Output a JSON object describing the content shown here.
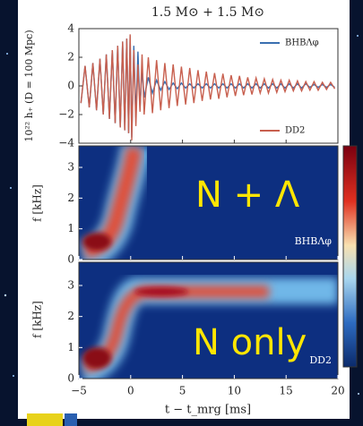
{
  "chart_data": [
    {
      "type": "line",
      "title": "1.5 M⊙ + 1.5 M⊙",
      "y_label": "10²² h₊ (D = 100 Mpc)",
      "xlim": [
        -5,
        20
      ],
      "x": [
        -4.8,
        -4.4,
        -4.0,
        -3.65,
        -3.3,
        -2.97,
        -2.65,
        -2.35,
        -2.05,
        -1.77,
        -1.5,
        -1.25,
        -1.0,
        -0.78,
        -0.57,
        -0.38,
        -0.2,
        -0.05,
        0.1,
        0.3,
        0.5,
        0.7,
        0.9,
        1.1,
        1.3,
        1.7,
        2.1,
        2.5,
        2.9,
        3.3,
        3.7,
        4.1,
        4.5,
        4.9,
        5.3,
        5.7,
        6.1,
        6.5,
        6.9,
        7.3,
        7.7,
        8.1,
        8.5,
        8.9,
        9.3,
        9.7,
        10.1,
        10.5,
        10.9,
        11.3,
        11.7,
        12.1,
        12.5,
        12.9,
        13.3,
        13.7,
        14.1,
        14.5,
        14.9,
        15.3,
        15.7,
        16.1,
        16.5,
        16.9,
        17.3,
        17.7,
        18.1,
        18.5,
        18.9,
        19.3,
        19.7
      ],
      "series": [
        {
          "name": "BHBΛφ",
          "color": "#3a6fb0",
          "values": [
            -1.2,
            1.4,
            -1.5,
            1.6,
            -1.7,
            1.9,
            -2.0,
            2.2,
            -2.3,
            2.5,
            -2.6,
            2.8,
            -2.9,
            3.1,
            -3.1,
            3.3,
            -3.3,
            3.5,
            -3.6,
            2.8,
            -2.2,
            2.4,
            -1.6,
            1.2,
            -0.8,
            0.6,
            -0.5,
            0.4,
            -0.3,
            0.3,
            -0.25,
            0.2,
            -0.2,
            0.2,
            -0.15,
            0.15,
            -0.15,
            0.15,
            -0.15,
            0.15,
            -0.15,
            0.15,
            -0.15,
            0.15,
            -0.15,
            0.15,
            -0.15,
            0.15,
            -0.15,
            0.15,
            -0.15,
            0.15,
            -0.15,
            0.15,
            -0.15,
            0.15,
            -0.15,
            0.15,
            -0.15,
            0.15,
            -0.15,
            0.15,
            -0.15,
            0.15,
            -0.1,
            0.1,
            -0.1,
            0.1,
            -0.1,
            0.1,
            -0.1
          ]
        },
        {
          "name": "DD2",
          "color": "#c8604f",
          "values": [
            -1.2,
            1.4,
            -1.5,
            1.6,
            -1.7,
            1.9,
            -2.0,
            2.2,
            -2.3,
            2.5,
            -2.6,
            2.8,
            -2.9,
            3.1,
            -3.1,
            3.3,
            -3.3,
            3.6,
            -3.8,
            2.5,
            -2.8,
            1.5,
            -1.8,
            2.2,
            -2.0,
            2.0,
            -1.9,
            1.8,
            -1.7,
            1.6,
            -1.55,
            1.5,
            -1.4,
            1.35,
            -1.3,
            1.25,
            -1.2,
            1.1,
            -1.05,
            1.0,
            -0.95,
            0.9,
            -0.9,
            0.85,
            -0.8,
            0.75,
            -0.7,
            0.7,
            -0.65,
            0.6,
            -0.6,
            0.55,
            -0.5,
            0.5,
            -0.5,
            0.45,
            -0.45,
            0.4,
            -0.4,
            0.4,
            -0.35,
            0.35,
            -0.35,
            0.3,
            -0.3,
            0.3,
            -0.3,
            0.25,
            -0.25,
            0.25,
            -0.2
          ]
        }
      ],
      "ylim": [
        -4,
        4
      ],
      "yticks": [
        {
          "value": -4,
          "label": "−4"
        },
        {
          "value": -2,
          "label": "−2"
        },
        0,
        2,
        4
      ]
    },
    {
      "type": "heatmap",
      "y_label": "f [kHz]",
      "panel_label": "BHBΛφ",
      "annotation": "N + Λ",
      "xlim": [
        -5,
        20
      ],
      "ylim": [
        0,
        3.7
      ],
      "yticks": [
        0,
        1,
        2,
        3
      ]
    },
    {
      "type": "heatmap",
      "y_label": "f [kHz]",
      "panel_label": "DD2",
      "annotation": "N only",
      "x_label": "t − t_mrg [ms]",
      "xlim": [
        -5,
        20
      ],
      "xticks": [
        {
          "value": -5,
          "label": "−5"
        },
        0,
        5,
        10,
        15,
        20
      ],
      "ylim": [
        0,
        3.75
      ],
      "yticks": [
        0,
        1,
        2,
        3
      ]
    }
  ]
}
